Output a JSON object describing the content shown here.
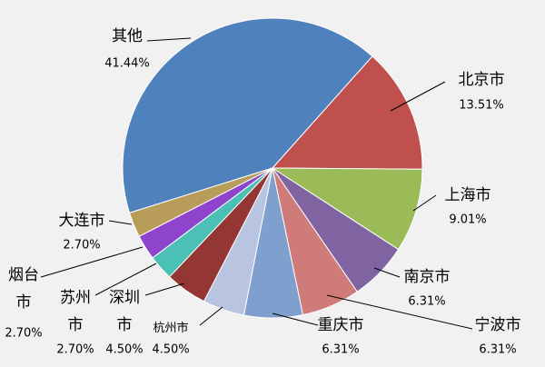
{
  "chart_data": {
    "type": "pie",
    "categories": [
      "其他",
      "北京市",
      "上海市",
      "南京市",
      "宁波市",
      "重庆市",
      "杭州市",
      "深圳市",
      "苏州市",
      "烟台市",
      "大连市"
    ],
    "values": [
      41.44,
      13.51,
      9.01,
      6.31,
      6.31,
      6.31,
      4.5,
      4.5,
      2.7,
      2.7,
      2.7
    ],
    "value_labels": [
      "41.44%",
      "13.51%",
      "9.01%",
      "6.31%",
      "6.31%",
      "6.31%",
      "4.50%",
      "4.50%",
      "2.70%",
      "2.70%",
      "2.70%"
    ],
    "colors": [
      "#4f81bd",
      "#c0504d",
      "#9bbb59",
      "#8064a2",
      "#cf7b79",
      "#7f9fcf",
      "#b9c4e0",
      "#943634",
      "#4bc0b4",
      "#8e44cc",
      "#b89c5a"
    ]
  }
}
